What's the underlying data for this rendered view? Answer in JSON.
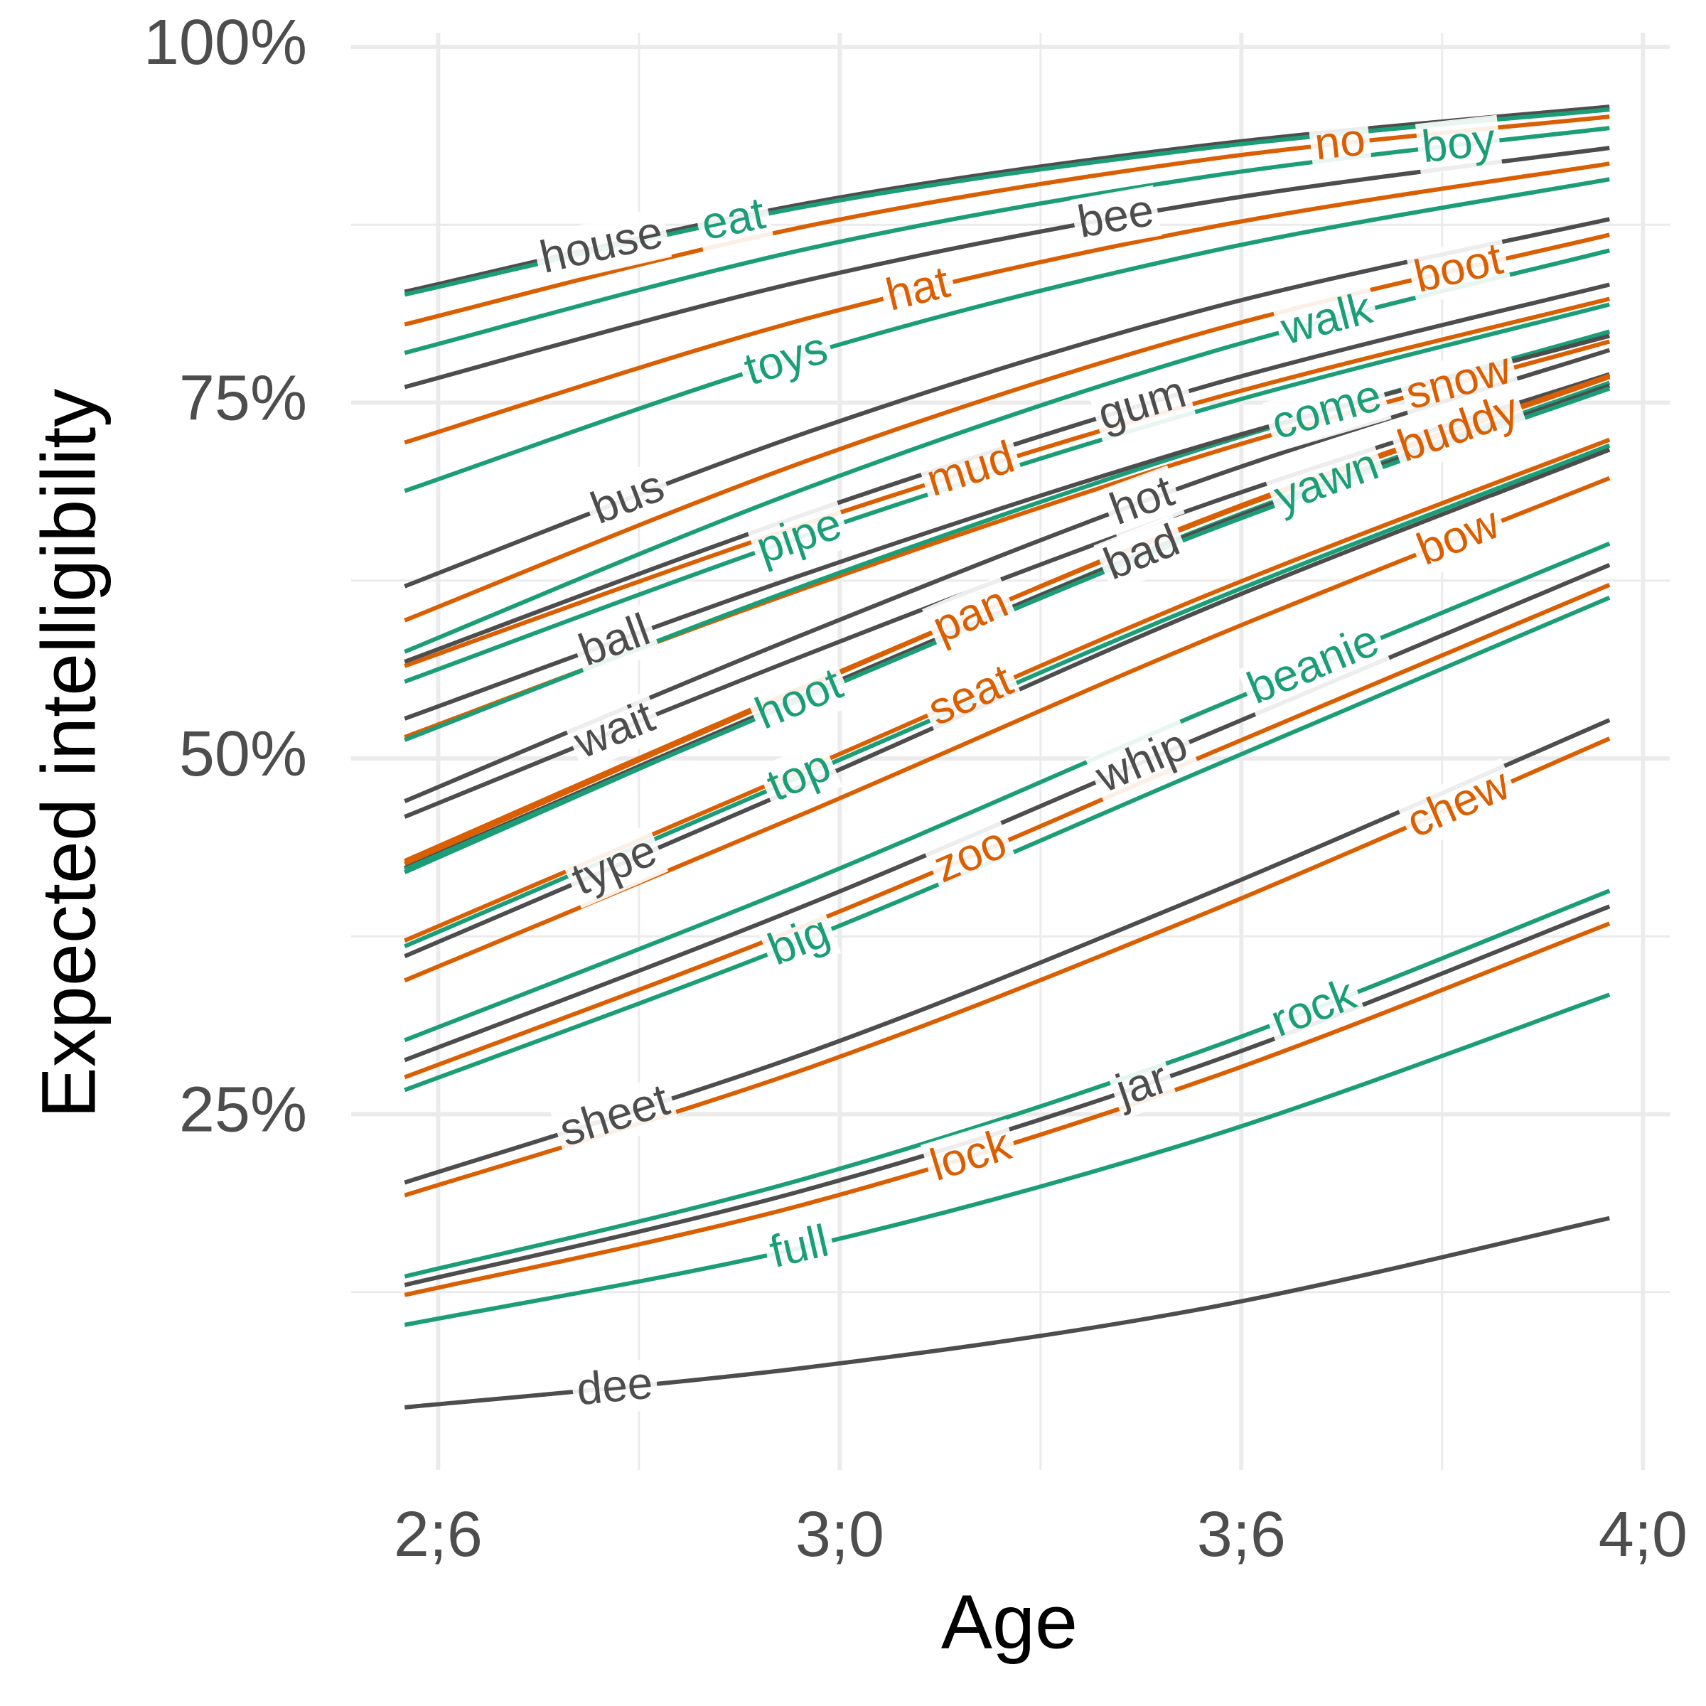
{
  "chart_data": {
    "type": "line",
    "x_label": "Age",
    "y_label": "Expected intelligibility",
    "x": [
      29.5,
      35.5,
      41.5,
      47.5
    ],
    "xlim": [
      28.7,
      48.4
    ],
    "ylim": [
      0,
      101
    ],
    "xticks": [
      {
        "value": 30,
        "label": "2;6"
      },
      {
        "value": 36,
        "label": "3;0"
      },
      {
        "value": 42,
        "label": "3;6"
      },
      {
        "value": 48,
        "label": "4;0"
      }
    ],
    "xminorticks": [
      33,
      39,
      45
    ],
    "yticks": [
      {
        "value": 25,
        "label": "25%"
      },
      {
        "value": 50,
        "label": "50%"
      },
      {
        "value": 75,
        "label": "75%"
      },
      {
        "value": 100,
        "label": "100%"
      }
    ],
    "yminorticks": [
      12.5,
      37.5,
      62.5,
      87.5
    ],
    "grid": true,
    "series": [
      {
        "name": "house",
        "color": "#4d4d4d",
        "values": [
          82.8,
          89.0,
          93.1,
          95.8
        ]
      },
      {
        "name": "eat",
        "color": "#1b9e77",
        "values": [
          82.6,
          88.8,
          92.9,
          95.6
        ]
      },
      {
        "name": "no",
        "color": "#d95f02",
        "values": [
          80.5,
          87.4,
          92.1,
          95.1
        ]
      },
      {
        "name": "boy",
        "color": "#1b9e77",
        "values": [
          78.5,
          85.8,
          90.9,
          94.3
        ]
      },
      {
        "name": "bee",
        "color": "#4d4d4d",
        "values": [
          76.1,
          83.6,
          89.1,
          92.9
        ]
      },
      {
        "name": "hat",
        "color": "#d95f02",
        "values": [
          72.2,
          80.9,
          87.3,
          91.8
        ]
      },
      {
        "name": "toys",
        "color": "#1b9e77",
        "values": [
          68.8,
          78.4,
          85.6,
          90.7
        ]
      },
      {
        "name": "bus",
        "color": "#4d4d4d",
        "values": [
          62.1,
          72.9,
          81.6,
          87.9
        ]
      },
      {
        "name": "boot",
        "color": "#d95f02",
        "values": [
          59.7,
          70.9,
          80.0,
          86.8
        ]
      },
      {
        "name": "walk",
        "color": "#1b9e77",
        "values": [
          57.5,
          69.0,
          78.5,
          85.7
        ]
      },
      {
        "name": "gum",
        "color": "#4d4d4d",
        "values": [
          56.8,
          67.2,
          76.2,
          83.3
        ]
      },
      {
        "name": "mud",
        "color": "#d95f02",
        "values": [
          56.5,
          66.5,
          75.2,
          82.3
        ]
      },
      {
        "name": "pipe",
        "color": "#1b9e77",
        "values": [
          55.4,
          65.7,
          74.6,
          81.9
        ]
      },
      {
        "name": "snow",
        "color": "#d95f02",
        "values": [
          51.5,
          62.0,
          71.4,
          79.3
        ]
      },
      {
        "name": "come",
        "color": "#1b9e77",
        "values": [
          51.3,
          62.2,
          71.9,
          80.0
        ]
      },
      {
        "name": "ball",
        "color": "#4d4d4d",
        "values": [
          52.8,
          63.0,
          72.1,
          79.7
        ]
      },
      {
        "name": "hot",
        "color": "#4d4d4d",
        "values": [
          47.0,
          58.8,
          69.7,
          78.7
        ]
      },
      {
        "name": "buddy",
        "color": "#d95f02",
        "values": [
          42.8,
          55.1,
          66.8,
          76.8
        ]
      },
      {
        "name": "yawn",
        "color": "#1b9e77",
        "values": [
          42.0,
          54.4,
          66.3,
          76.4
        ]
      },
      {
        "name": "wait",
        "color": "#4d4d4d",
        "values": [
          45.9,
          57.3,
          67.9,
          77.0
        ]
      },
      {
        "name": "bad",
        "color": "#4d4d4d",
        "values": [
          42.3,
          54.5,
          66.2,
          76.2
        ]
      },
      {
        "name": "pan",
        "color": "#d95f02",
        "values": [
          42.6,
          55.0,
          66.9,
          76.9
        ]
      },
      {
        "name": "hoot",
        "color": "#1b9e77",
        "values": [
          42.2,
          54.3,
          66.0,
          76.0
        ]
      },
      {
        "name": "seat",
        "color": "#d95f02",
        "values": [
          37.2,
          49.3,
          61.5,
          72.4
        ]
      },
      {
        "name": "top",
        "color": "#1b9e77",
        "values": [
          36.8,
          48.9,
          61.0,
          72.0
        ]
      },
      {
        "name": "type",
        "color": "#4d4d4d",
        "values": [
          36.1,
          48.2,
          60.6,
          71.7
        ]
      },
      {
        "name": "bow",
        "color": "#d95f02",
        "values": [
          34.4,
          46.2,
          58.4,
          69.7
        ]
      },
      {
        "name": "beanie",
        "color": "#1b9e77",
        "values": [
          30.2,
          41.3,
          53.4,
          65.1
        ]
      },
      {
        "name": "whip",
        "color": "#4d4d4d",
        "values": [
          28.8,
          39.7,
          51.7,
          63.6
        ]
      },
      {
        "name": "zoo",
        "color": "#d95f02",
        "values": [
          27.6,
          38.3,
          50.3,
          62.2
        ]
      },
      {
        "name": "big",
        "color": "#1b9e77",
        "values": [
          26.7,
          37.3,
          49.3,
          61.3
        ]
      },
      {
        "name": "chew",
        "color": "#d95f02",
        "values": [
          19.3,
          28.2,
          39.2,
          51.4
        ]
      },
      {
        "name": "sheet",
        "color": "#4d4d4d",
        "values": [
          20.2,
          29.3,
          40.5,
          52.7
        ]
      },
      {
        "name": "rock",
        "color": "#1b9e77",
        "values": [
          13.6,
          20.5,
          29.6,
          40.7
        ]
      },
      {
        "name": "jar",
        "color": "#4d4d4d",
        "values": [
          13.0,
          19.7,
          28.6,
          39.6
        ]
      },
      {
        "name": "lock",
        "color": "#d95f02",
        "values": [
          12.3,
          18.7,
          27.5,
          38.4
        ]
      },
      {
        "name": "full",
        "color": "#1b9e77",
        "values": [
          10.2,
          15.7,
          23.4,
          33.4
        ]
      },
      {
        "name": "dee",
        "color": "#4d4d4d",
        "values": [
          4.4,
          7.2,
          11.4,
          17.7
        ]
      }
    ]
  }
}
